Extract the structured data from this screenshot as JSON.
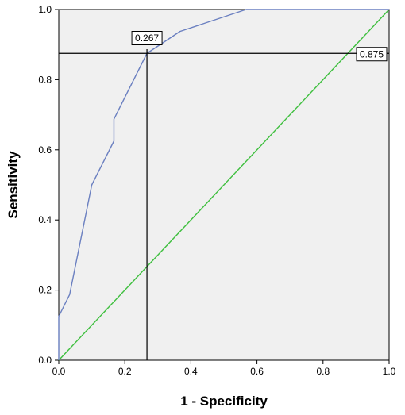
{
  "chart_data": {
    "type": "line",
    "title": "",
    "xlabel": "1 - Specificity",
    "ylabel": "Sensitivity",
    "xlim": [
      0,
      1
    ],
    "ylim": [
      0,
      1
    ],
    "xticks": [
      "0.0",
      "0.2",
      "0.4",
      "0.6",
      "0.8",
      "1.0"
    ],
    "yticks": [
      "0.0",
      "0.2",
      "0.4",
      "0.6",
      "0.8",
      "1.0"
    ],
    "grid": false,
    "legend": "none",
    "series": [
      {
        "role": "roc-curve",
        "color": "#6a7fc0",
        "x": [
          0.0,
          0.0,
          0.033,
          0.1,
          0.167,
          0.167,
          0.267,
          0.367,
          0.567,
          1.0
        ],
        "y": [
          0.0,
          0.125,
          0.1875,
          0.5,
          0.625,
          0.6875,
          0.875,
          0.9375,
          1.0,
          1.0
        ]
      },
      {
        "role": "reference-line",
        "color": "#3fbf3f",
        "x": [
          0,
          1
        ],
        "y": [
          0,
          1
        ]
      }
    ],
    "annotations": {
      "vertical_line": {
        "x": 0.267,
        "label": "0.267"
      },
      "horizontal_line": {
        "y": 0.875,
        "label": "0.875"
      }
    },
    "colors": {
      "plot_background": "#f0f0f0",
      "guide_lines": "#000000"
    }
  }
}
